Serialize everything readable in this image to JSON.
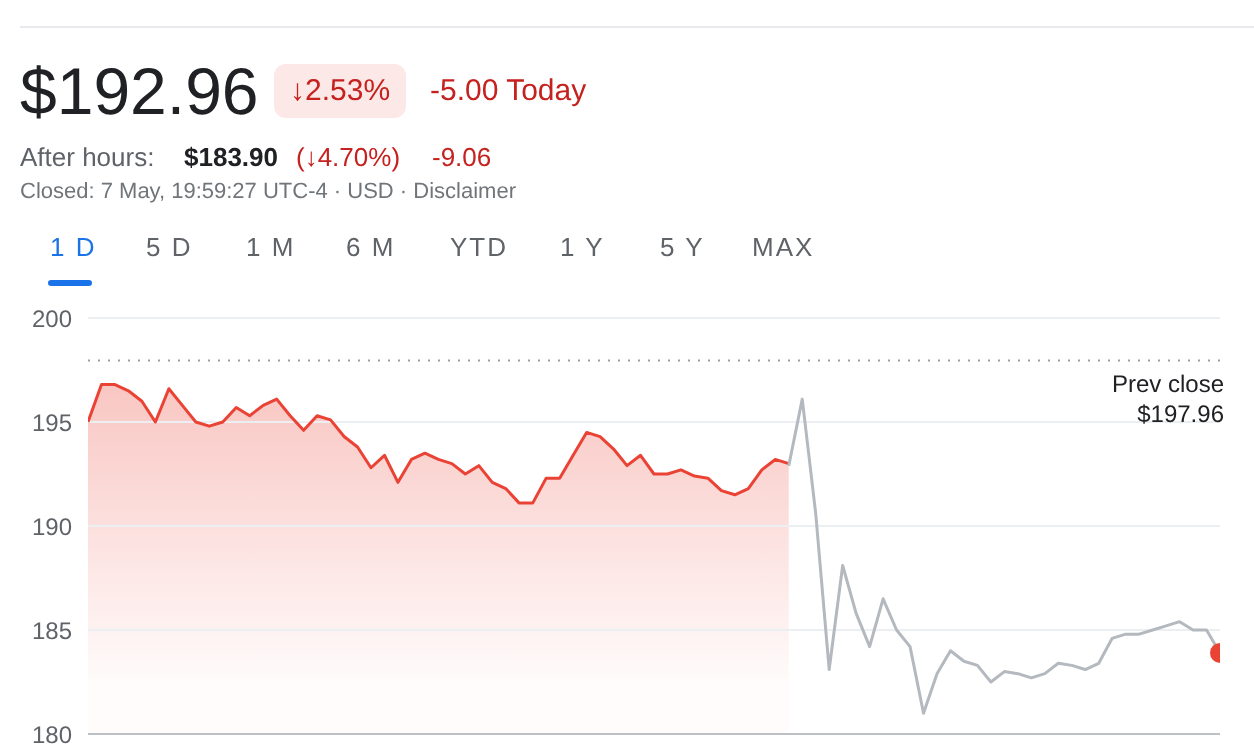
{
  "chart_data": {
    "type": "line",
    "title": "$192.96",
    "subtitle": "Closed: 7 May, 19:59:27 UTC-4 · USD · Disclaimer",
    "annotations": [
      "↓2.53%",
      "-5.00 Today",
      "After hours:",
      "$183.90",
      "(↓4.70%)",
      "-9.06",
      "1 D",
      "5 D",
      "1 M",
      "6 M",
      "YTD",
      "1 Y",
      "5 Y",
      "MAX"
    ],
    "categories": [
      null,
      null,
      null,
      null,
      null,
      null,
      null,
      null,
      null,
      null,
      null,
      null,
      null,
      null,
      null,
      null,
      null,
      null,
      null,
      null,
      null,
      null,
      null,
      null,
      null,
      null,
      null,
      null,
      null,
      null,
      null,
      null,
      null,
      null,
      null,
      null,
      null,
      null,
      null,
      null,
      null,
      null,
      null,
      null,
      null,
      null,
      null,
      null,
      null,
      null,
      null,
      null,
      null,
      null,
      null,
      null,
      null,
      null,
      null,
      null,
      null,
      null,
      null,
      null,
      null,
      null,
      null,
      null,
      null,
      null,
      null,
      null,
      null,
      null,
      null,
      null,
      null,
      null,
      null,
      null,
      null,
      null,
      null,
      null,
      null
    ],
    "series": [
      {
        "color": "#ea4335",
        "values": [
          195.0,
          196.8,
          196.8,
          196.5,
          196.0,
          195.0,
          196.6,
          195.8,
          195.0,
          194.8,
          195.0,
          195.7,
          195.3,
          195.8,
          196.1,
          195.3,
          194.6,
          195.3,
          195.1,
          194.3,
          193.8,
          192.8,
          193.4,
          192.1,
          193.2,
          193.5,
          193.2,
          193.0,
          192.5,
          192.9,
          192.1,
          191.8,
          191.1,
          191.1,
          192.3,
          192.3,
          193.4,
          194.5,
          194.3,
          193.7,
          192.9,
          193.4,
          192.5,
          192.5,
          192.7,
          192.4,
          192.3,
          191.7,
          191.5,
          191.8,
          192.7,
          193.2,
          193.0,
          null,
          null,
          null,
          null,
          null,
          null,
          null,
          null,
          null,
          null,
          null,
          null,
          null,
          null,
          null,
          null,
          null,
          null,
          null,
          null,
          null,
          null,
          null,
          null,
          null,
          null,
          null,
          null,
          null,
          null,
          null,
          null
        ]
      },
      {
        "type": "line",
        "color": "#b3b9bf",
        "values": [
          null,
          null,
          null,
          null,
          null,
          null,
          null,
          null,
          null,
          null,
          null,
          null,
          null,
          null,
          null,
          null,
          null,
          null,
          null,
          null,
          null,
          null,
          null,
          null,
          null,
          null,
          null,
          null,
          null,
          null,
          null,
          null,
          null,
          null,
          null,
          null,
          null,
          null,
          null,
          null,
          null,
          null,
          null,
          null,
          null,
          null,
          null,
          null,
          null,
          null,
          null,
          null,
          192.9,
          196.1,
          190.6,
          183.1,
          188.1,
          185.8,
          184.2,
          186.5,
          185.0,
          184.2,
          181.0,
          182.9,
          184.0,
          183.5,
          183.3,
          182.5,
          183.0,
          182.9,
          182.7,
          182.9,
          183.4,
          183.3,
          183.1,
          183.4,
          184.6,
          184.8,
          184.8,
          185.0,
          185.2,
          185.4,
          185.0,
          185.0,
          183.9
        ]
      }
    ],
    "ylim": [
      180,
      200
    ],
    "yticks": [
      180,
      185,
      190,
      195,
      200
    ],
    "grid": "y",
    "ref_lines": [
      {
        "axis": "y",
        "value": 197.96,
        "label": "Prev close $197.96",
        "color": "#9aa0a6",
        "line_style": "dotted"
      }
    ]
  }
}
